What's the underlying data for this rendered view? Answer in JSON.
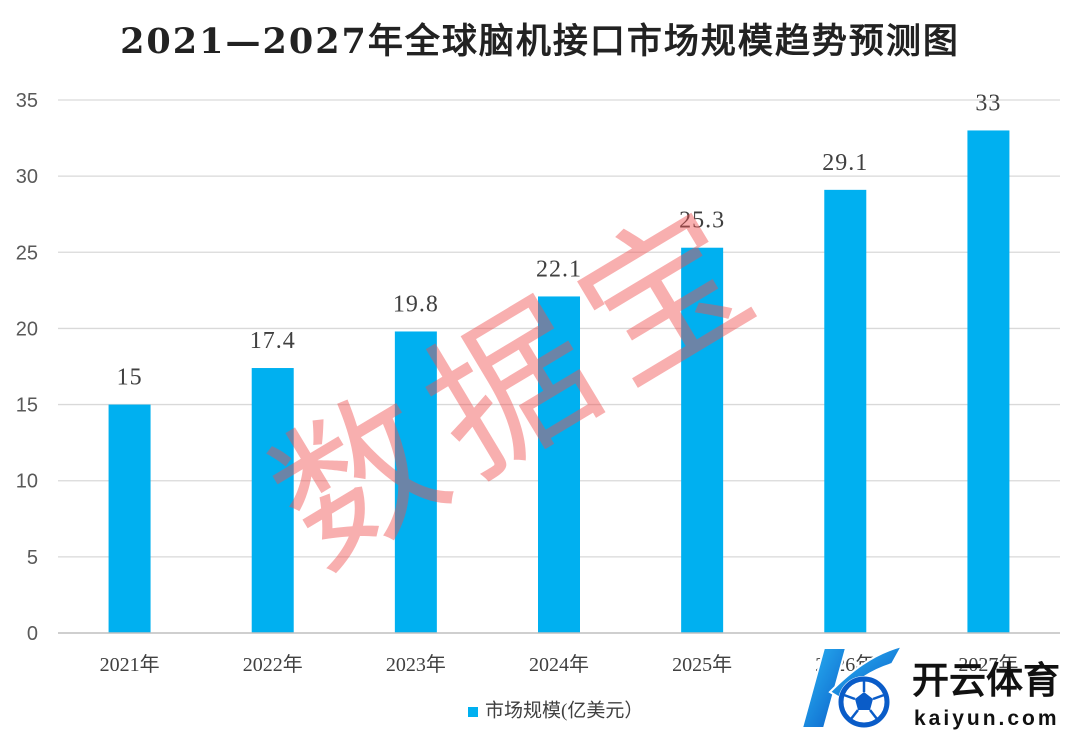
{
  "chart_data": {
    "type": "bar",
    "title": "2021—2027年全球脑机接口市场规模趋势预测图",
    "categories": [
      "2021年",
      "2022年",
      "2023年",
      "2024年",
      "2025年",
      "2026年",
      "2027年"
    ],
    "series": [
      {
        "name": "市场规模(亿美元）",
        "values": [
          15,
          17.4,
          19.8,
          22.1,
          25.3,
          29.1,
          33
        ],
        "color": "#00B0F0"
      }
    ],
    "ylim": [
      0,
      35
    ],
    "yticks": [
      0,
      5,
      10,
      15,
      20,
      25,
      30,
      35
    ],
    "grid": true,
    "data_labels": true,
    "legend": "bottom"
  },
  "watermark": {
    "text": "数据宝",
    "color": "#F05050"
  },
  "logo": {
    "name": "开云体育",
    "domain": "kaiyun.com",
    "icon": "kaiyun-k-soccer-ball-icon",
    "colors": {
      "primary": "#1E88E5",
      "dark": "#0A5CC8",
      "light": "#2BB8F5"
    }
  }
}
